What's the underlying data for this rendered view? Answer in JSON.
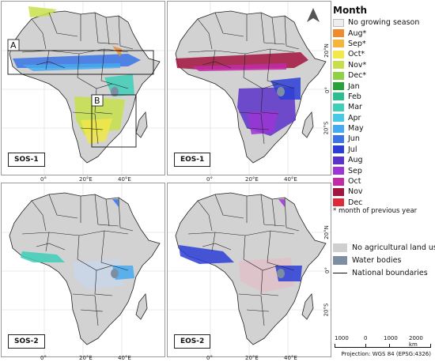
{
  "panels": [
    {
      "id": "sos1",
      "label": "SOS-1",
      "boxes": [
        "A",
        "B"
      ]
    },
    {
      "id": "eos1",
      "label": "EOS-1",
      "north_arrow": true
    },
    {
      "id": "sos2",
      "label": "SOS-2"
    },
    {
      "id": "eos2",
      "label": "EOS-2"
    }
  ],
  "axis_ticks": {
    "x": [
      "0°",
      "20°E",
      "40°E"
    ],
    "y": [
      "20°N",
      "0°",
      "20°S"
    ]
  },
  "legend": {
    "title": "Month",
    "items": [
      {
        "label": "No growing season",
        "color": "#eeeeee"
      },
      {
        "label": "Aug*",
        "color": "#f08a2a"
      },
      {
        "label": "Sep*",
        "color": "#f5b43a"
      },
      {
        "label": "Oct*",
        "color": "#f2e84a"
      },
      {
        "label": "Nov*",
        "color": "#c7e04a"
      },
      {
        "label": "Dec*",
        "color": "#8fd145"
      },
      {
        "label": "Jan",
        "color": "#27a23a"
      },
      {
        "label": "Feb",
        "color": "#2bbf8f"
      },
      {
        "label": "Mar",
        "color": "#3dcfb8"
      },
      {
        "label": "Apr",
        "color": "#45c9e6"
      },
      {
        "label": "May",
        "color": "#47a9ef"
      },
      {
        "label": "Jun",
        "color": "#3a74e6"
      },
      {
        "label": "Jul",
        "color": "#2b3ed6"
      },
      {
        "label": "Aug",
        "color": "#5a33c9"
      },
      {
        "label": "Sep",
        "color": "#9b35d6"
      },
      {
        "label": "Oct",
        "color": "#c42aa8"
      },
      {
        "label": "Nov",
        "color": "#a3143f"
      },
      {
        "label": "Dec",
        "color": "#e0283a"
      }
    ],
    "note": "* month of previous year"
  },
  "legend2": [
    {
      "label": "No agricultural land use",
      "color": "#cfcfcf"
    },
    {
      "label": "Water bodies",
      "color": "#7d8ea3"
    },
    {
      "label": "National boundaries",
      "type": "line"
    }
  ],
  "scale": {
    "ticks": [
      "1000",
      "0",
      "1000",
      "2000 km"
    ],
    "projection": "Projection: WGS 84 (EPSG:4326)"
  }
}
